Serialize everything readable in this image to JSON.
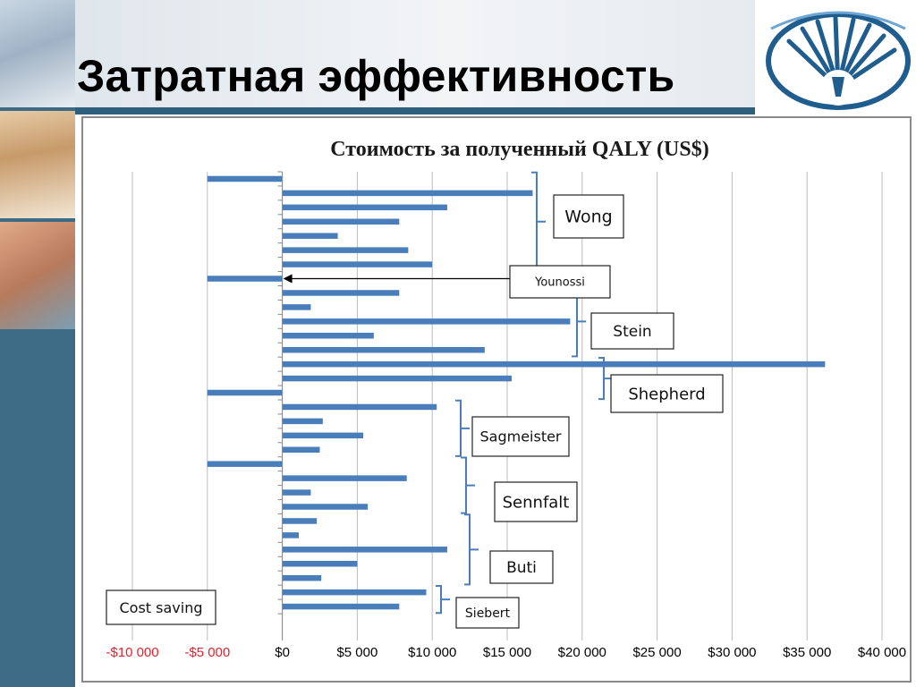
{
  "page": {
    "title": "Затратная эффективность"
  },
  "colors": {
    "bar": "#4a7ebb",
    "bracket": "#4a7ebb",
    "negative_tick": "#e8202a",
    "tick": "#000000",
    "grid": "#bcbcbc",
    "sidebar": "#3d6b86"
  },
  "icons": [
    "logo-emblem-icon",
    "medical-photo-icon"
  ],
  "chart_data": {
    "type": "bar",
    "orientation": "horizontal",
    "title": "Стоимость за полученный QALY (US$)",
    "xlim": [
      -10000,
      40000
    ],
    "xtick_values": [
      -10000,
      -5000,
      0,
      5000,
      10000,
      15000,
      20000,
      25000,
      30000,
      35000,
      40000
    ],
    "xtick_labels": [
      "-$10 000",
      "-$5 000",
      "$0",
      "$5 000",
      "$10 000",
      "$15 000",
      "$20 000",
      "$25 000",
      "$30 000",
      "$35 000",
      "$40 000"
    ],
    "grid": true,
    "values": [
      -5000,
      16700,
      11000,
      7800,
      3700,
      8400,
      10000,
      -5000,
      7800,
      1900,
      19200,
      6100,
      13500,
      36200,
      15300,
      -5000,
      10300,
      2700,
      5400,
      2500,
      -5000,
      8300,
      1900,
      5700,
      2300,
      1100,
      11000,
      5000,
      2600,
      9600,
      7800
    ],
    "groups": [
      {
        "label": "Wong",
        "start": 0,
        "end": 6
      },
      {
        "label": "Younossi",
        "start": 7,
        "end": 7
      },
      {
        "label": "Stein",
        "start": 8,
        "end": 12
      },
      {
        "label": "Shepherd",
        "start": 13,
        "end": 15
      },
      {
        "label": "Sagmeister",
        "start": 16,
        "end": 19
      },
      {
        "label": "Sennfalt",
        "start": 20,
        "end": 23
      },
      {
        "label": "Buti",
        "start": 24,
        "end": 28
      },
      {
        "label": "Siebert",
        "start": 29,
        "end": 30
      }
    ],
    "annotations": [
      {
        "label": "Cost saving"
      }
    ]
  }
}
